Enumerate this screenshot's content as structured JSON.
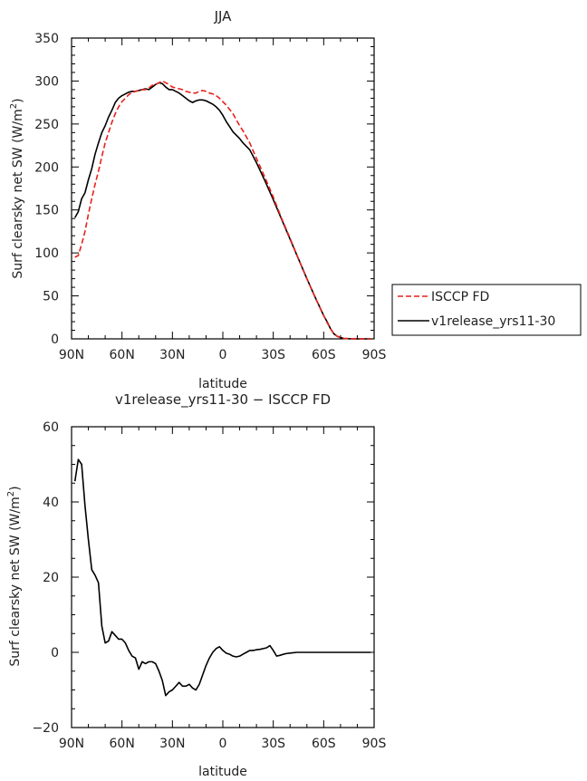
{
  "chart_data": [
    {
      "type": "line",
      "title": "JJA",
      "xlabel": "latitude",
      "ylabel": "Surf clearsky net SW (W/m",
      "ylabel_sup": "2",
      "ylabel_close": ")",
      "xlim": [
        90,
        -90
      ],
      "ylim": [
        0,
        350
      ],
      "xticks": [
        90,
        60,
        30,
        0,
        -30,
        -60,
        -90
      ],
      "xtick_labels": [
        "90N",
        "60N",
        "30N",
        "0",
        "30S",
        "60S",
        "90S"
      ],
      "yticks": [
        0,
        50,
        100,
        150,
        200,
        250,
        300,
        350
      ],
      "ytick_labels": [
        "0",
        "50",
        "100",
        "150",
        "200",
        "250",
        "300",
        "350"
      ],
      "legend_position": "right",
      "series": [
        {
          "name": "ISCCP FD",
          "color": "#e8211a",
          "dash": "dashed",
          "x": [
            88,
            86,
            84,
            82,
            80,
            78,
            76,
            74,
            72,
            70,
            68,
            66,
            64,
            62,
            60,
            58,
            56,
            54,
            52,
            50,
            48,
            46,
            44,
            42,
            40,
            38,
            36,
            34,
            32,
            30,
            28,
            26,
            24,
            22,
            20,
            18,
            16,
            14,
            12,
            10,
            8,
            6,
            4,
            2,
            0,
            -2,
            -4,
            -6,
            -8,
            -10,
            -12,
            -14,
            -16,
            -20,
            -25,
            -30,
            -35,
            -40,
            -45,
            -50,
            -55,
            -60,
            -62,
            -64,
            -66,
            -68,
            -70,
            -72,
            -75,
            -80,
            -85,
            -88
          ],
          "y": [
            95,
            97,
            110,
            125,
            145,
            163,
            180,
            195,
            212,
            228,
            240,
            252,
            262,
            270,
            276,
            280,
            284,
            287,
            288,
            289,
            290,
            290,
            292,
            295,
            296,
            298,
            300,
            298,
            296,
            293,
            292,
            291,
            290,
            288,
            287,
            286,
            286,
            288,
            289,
            288,
            286,
            285,
            283,
            280,
            276,
            272,
            267,
            262,
            255,
            248,
            242,
            235,
            228,
            210,
            188,
            165,
            140,
            117,
            93,
            70,
            48,
            27,
            19,
            12,
            6,
            3,
            1.5,
            0.5,
            0.2,
            0,
            0,
            0
          ]
        },
        {
          "name": "v1release_yrs11-30",
          "color": "#000000",
          "dash": "solid",
          "x": [
            88,
            86,
            84,
            82,
            80,
            78,
            76,
            74,
            72,
            70,
            68,
            66,
            64,
            62,
            60,
            58,
            56,
            54,
            52,
            50,
            48,
            46,
            44,
            42,
            40,
            38,
            36,
            34,
            32,
            30,
            28,
            26,
            24,
            22,
            20,
            18,
            16,
            14,
            12,
            10,
            8,
            6,
            4,
            2,
            0,
            -2,
            -4,
            -6,
            -8,
            -10,
            -12,
            -14,
            -16,
            -20,
            -25,
            -30,
            -35,
            -40,
            -45,
            -50,
            -55,
            -60,
            -62,
            -64,
            -66,
            -68,
            -70,
            -72,
            -75,
            -80,
            -85,
            -88
          ],
          "y": [
            141,
            148,
            163,
            170,
            185,
            198,
            215,
            228,
            240,
            248,
            258,
            266,
            275,
            280,
            283,
            285,
            287,
            288,
            288,
            289,
            290,
            291,
            290,
            293,
            296,
            298,
            297,
            293,
            290,
            290,
            288,
            286,
            283,
            280,
            277,
            275,
            277,
            278,
            278,
            277,
            275,
            273,
            270,
            266,
            260,
            253,
            247,
            241,
            237,
            233,
            228,
            224,
            220,
            205,
            184,
            162,
            139,
            116,
            93,
            70,
            48,
            27,
            20,
            12,
            6,
            3,
            1.5,
            0.5,
            0.2,
            0,
            0,
            0
          ]
        }
      ]
    },
    {
      "type": "line",
      "title": "v1release_yrs11-30 − ISCCP FD",
      "xlabel": "latitude",
      "ylabel": "Surf clearsky net SW (W/m",
      "ylabel_sup": "2",
      "ylabel_close": ")",
      "xlim": [
        90,
        -90
      ],
      "ylim": [
        -20,
        60
      ],
      "xticks": [
        90,
        60,
        30,
        0,
        -30,
        -60,
        -90
      ],
      "xtick_labels": [
        "90N",
        "60N",
        "30N",
        "0",
        "30S",
        "60S",
        "90S"
      ],
      "yticks": [
        -20,
        0,
        20,
        40,
        60
      ],
      "ytick_labels": [
        "−20",
        "0",
        "20",
        "40",
        "60"
      ],
      "series": [
        {
          "color": "#000000",
          "dash": "solid",
          "x": [
            88,
            86,
            84,
            82,
            80,
            78,
            76,
            74,
            72,
            70,
            68,
            66,
            64,
            62,
            60,
            58,
            56,
            54,
            52,
            50,
            48,
            46,
            44,
            42,
            40,
            38,
            36,
            34,
            32,
            30,
            28,
            26,
            24,
            22,
            20,
            18,
            16,
            14,
            12,
            10,
            8,
            6,
            4,
            2,
            0,
            -2,
            -4,
            -6,
            -8,
            -10,
            -12,
            -14,
            -16,
            -18,
            -20,
            -22,
            -24,
            -26,
            -28,
            -30,
            -32,
            -34,
            -36,
            -38,
            -40,
            -42,
            -44,
            -46,
            -48,
            -50,
            -52,
            -54,
            -56,
            -58,
            -60,
            -62,
            -64,
            -66,
            -68,
            -70,
            -72,
            -74,
            -76,
            -78,
            -80,
            -82,
            -84,
            -86,
            -88
          ],
          "y": [
            45.5,
            51.3,
            50,
            39,
            30,
            22,
            20.5,
            18.5,
            7,
            2.5,
            3,
            5.5,
            4.5,
            3.5,
            3.5,
            2.5,
            0.5,
            -1,
            -1.5,
            -4.5,
            -2.5,
            -3,
            -2.5,
            -2.5,
            -3,
            -5,
            -7.5,
            -11.5,
            -10.5,
            -10,
            -9,
            -8,
            -9,
            -9,
            -8.5,
            -9.5,
            -10,
            -8.5,
            -6,
            -3.5,
            -1.5,
            0,
            1,
            1.5,
            0.5,
            -0.2,
            -0.5,
            -1,
            -1.2,
            -1,
            -0.5,
            0,
            0.5,
            0.5,
            0.7,
            0.8,
            1,
            1.2,
            1.8,
            0.5,
            -1,
            -0.8,
            -0.5,
            -0.3,
            -0.2,
            -0.1,
            0,
            0,
            0,
            0,
            0,
            0,
            0,
            0,
            0,
            0,
            0,
            0,
            0,
            0,
            0,
            0,
            0,
            0,
            0,
            0,
            0,
            0,
            0
          ]
        }
      ]
    }
  ]
}
